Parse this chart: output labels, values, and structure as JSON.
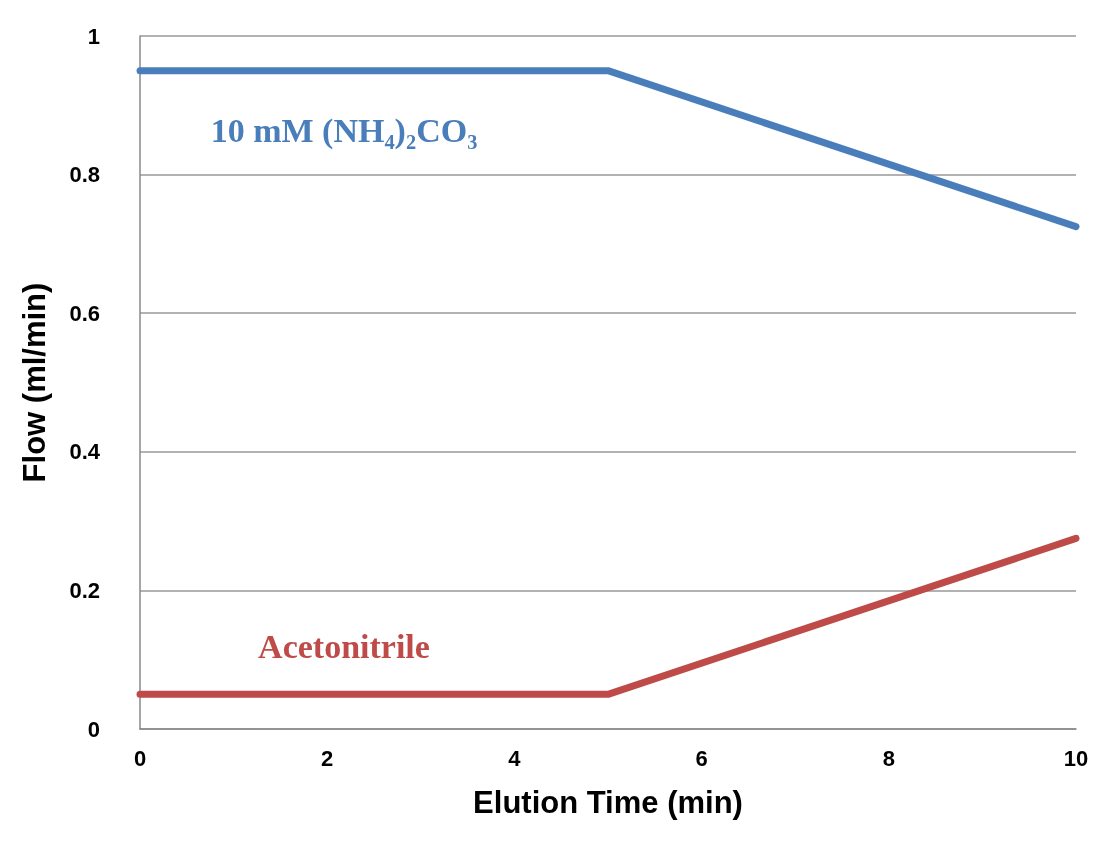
{
  "chart_data": {
    "type": "line",
    "xlabel": "Elution Time (min)",
    "ylabel": "Flow (ml/min)",
    "xlim": [
      0,
      10
    ],
    "xticks": [
      0,
      2,
      4,
      6,
      8,
      10
    ],
    "ylim": [
      0,
      1
    ],
    "yticks": [
      0,
      0.2,
      0.4,
      0.6,
      0.8,
      1
    ],
    "grid": "y",
    "legend": false,
    "marker": "none",
    "line_style": "solid",
    "series": [
      {
        "name": "10 mM (NH₄)₂CO₃",
        "color": "#4a7ebb",
        "x": [
          0,
          5,
          10
        ],
        "values": [
          0.95,
          0.95,
          0.725
        ]
      },
      {
        "name": "Acetonitrile",
        "color": "#be4b48",
        "x": [
          0,
          5,
          10
        ],
        "values": [
          0.05,
          0.05,
          0.275
        ]
      }
    ]
  }
}
